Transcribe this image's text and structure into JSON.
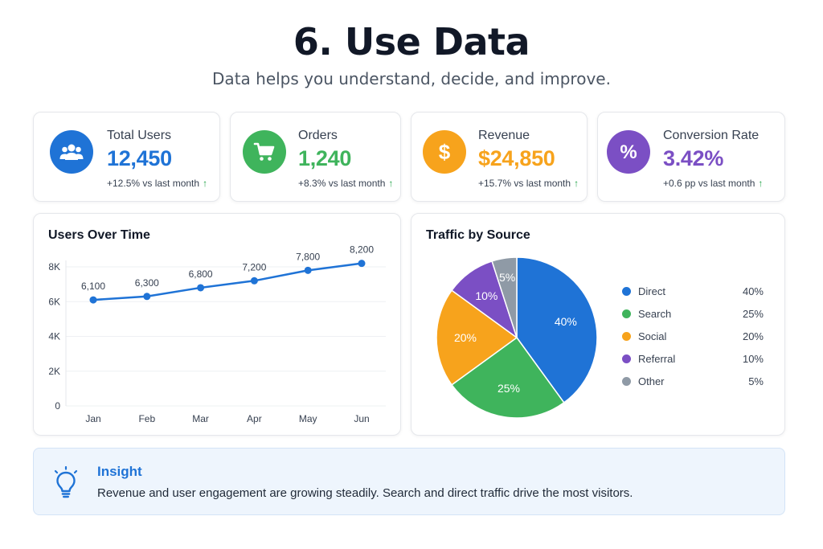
{
  "header": {
    "title": "6. Use Data",
    "subtitle": "Data helps you understand, decide, and improve."
  },
  "kpis": [
    {
      "label": "Total Users",
      "value": "12,450",
      "delta": "+12.5% vs last month",
      "color": "#1f73d6",
      "icon": "users-icon"
    },
    {
      "label": "Orders",
      "value": "1,240",
      "delta": "+8.3% vs last month",
      "color": "#3fb45c",
      "icon": "shopping-cart-icon"
    },
    {
      "label": "Revenue",
      "value": "$24,850",
      "delta": "+15.7% vs last month",
      "color": "#f7a31c",
      "icon": "dollar-icon"
    },
    {
      "label": "Conversion Rate",
      "value": "3.42%",
      "delta": "+0.6 pp vs last month",
      "color": "#7b4fc4",
      "icon": "percent-icon"
    }
  ],
  "delta_arrow": "↑",
  "chart_data": [
    {
      "type": "line",
      "title": "Users Over Time",
      "categories": [
        "Jan",
        "Feb",
        "Mar",
        "Apr",
        "May",
        "Jun"
      ],
      "values": [
        6100,
        6300,
        6800,
        7200,
        7800,
        8200
      ],
      "value_labels": [
        "6,100",
        "6,300",
        "6,800",
        "7,200",
        "7,800",
        "8,200"
      ],
      "y_ticks": [
        0,
        2000,
        4000,
        6000,
        8000
      ],
      "y_tick_labels": [
        "0",
        "2K",
        "4K",
        "6K",
        "8K"
      ],
      "ylim": [
        0,
        8000
      ],
      "grid": true,
      "color": "#1f73d6"
    },
    {
      "type": "pie",
      "title": "Traffic by Source",
      "labels": [
        "Direct",
        "Search",
        "Social",
        "Referral",
        "Other"
      ],
      "values": [
        40,
        25,
        20,
        10,
        5
      ],
      "display_values": [
        "40%",
        "25%",
        "20%",
        "10%",
        "5%"
      ],
      "colors": [
        "#1f73d6",
        "#3fb45c",
        "#f7a31c",
        "#7b4fc4",
        "#8f9aa6"
      ],
      "legend_position": "right"
    }
  ],
  "insight": {
    "title": "Insight",
    "text": "Revenue and user engagement are growing steadily. Search and direct traffic drive the most visitors."
  }
}
